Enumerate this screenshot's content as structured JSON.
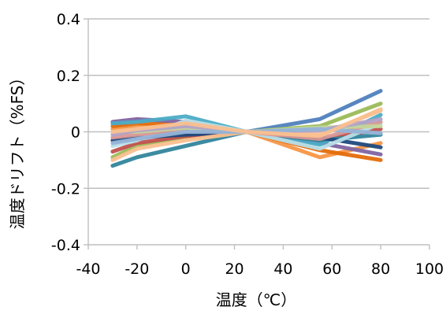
{
  "chart_data": {
    "type": "line",
    "xlabel": "温度（℃）",
    "ylabel": "温度ドリフト（%FS）",
    "xlim": [
      -40,
      100
    ],
    "ylim": [
      -0.4,
      0.4
    ],
    "x_ticks": [
      "-40",
      "-20",
      "0",
      "20",
      "40",
      "60",
      "80",
      "100"
    ],
    "y_ticks": [
      "0.4",
      "0.2",
      "0",
      "-0.2",
      "-0.4"
    ],
    "grid": "horizontal",
    "x": [
      -30,
      -20,
      0,
      25,
      55,
      80
    ],
    "series": [
      {
        "color": "#4f81bd",
        "values": [
          0.03,
          0.01,
          -0.01,
          0.0,
          0.045,
          0.145
        ]
      },
      {
        "color": "#9bbb59",
        "values": [
          -0.09,
          -0.05,
          -0.02,
          0.0,
          0.02,
          0.1
        ]
      },
      {
        "color": "#f79646",
        "values": [
          0.01,
          0.02,
          0.02,
          0.0,
          -0.09,
          -0.04
        ]
      },
      {
        "color": "#e46c0a",
        "values": [
          0.02,
          0.03,
          0.025,
          0.0,
          -0.065,
          -0.1
        ]
      },
      {
        "color": "#8064a2",
        "values": [
          0.035,
          0.045,
          0.035,
          0.0,
          -0.04,
          -0.08
        ]
      },
      {
        "color": "#4bacc6",
        "values": [
          0.03,
          0.035,
          0.055,
          0.0,
          -0.045,
          0.06
        ]
      },
      {
        "color": "#c0504d",
        "values": [
          -0.07,
          -0.04,
          -0.015,
          0.0,
          -0.03,
          0.01
        ]
      },
      {
        "color": "#31859c",
        "values": [
          -0.12,
          -0.09,
          -0.05,
          0.0,
          -0.03,
          -0.01
        ]
      },
      {
        "color": "#1f497d",
        "values": [
          -0.03,
          -0.02,
          -0.01,
          0.0,
          -0.02,
          -0.055
        ]
      },
      {
        "color": "#fabf8f",
        "values": [
          -0.1,
          -0.06,
          -0.03,
          0.0,
          -0.01,
          0.075
        ]
      },
      {
        "color": "#b7dee8",
        "values": [
          -0.05,
          -0.03,
          0.04,
          0.0,
          -0.06,
          0.03
        ]
      },
      {
        "color": "#d99694",
        "values": [
          -0.02,
          -0.01,
          0.01,
          0.0,
          -0.025,
          0.035
        ]
      },
      {
        "color": "#c3d69b",
        "values": [
          0.0,
          0.0,
          0.015,
          0.0,
          0.015,
          0.02
        ]
      },
      {
        "color": "#b3a2c7",
        "values": [
          -0.01,
          0.005,
          0.02,
          0.0,
          0.005,
          0.045
        ]
      },
      {
        "color": "#95b3d7",
        "values": [
          -0.04,
          -0.025,
          0.0,
          0.0,
          0.01,
          -0.005
        ]
      },
      {
        "color": "#fac090",
        "values": [
          0.0,
          0.01,
          0.03,
          0.0,
          -0.015,
          0.08
        ]
      }
    ]
  }
}
